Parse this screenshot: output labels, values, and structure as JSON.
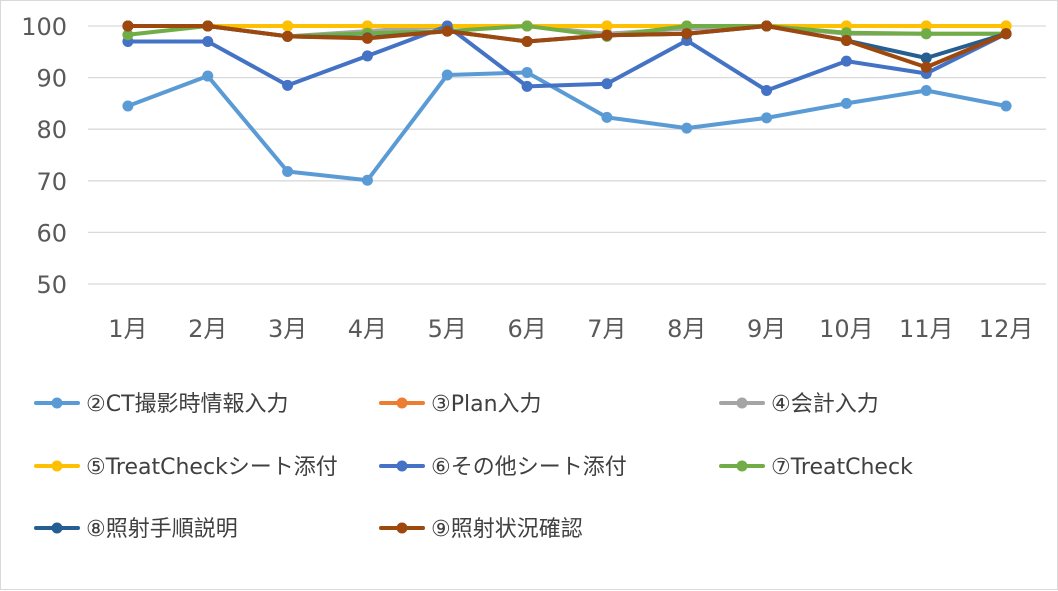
{
  "chart_data": {
    "type": "line",
    "title": "",
    "xlabel": "",
    "ylabel": "",
    "ylim": [
      50,
      100
    ],
    "yticks": [
      50,
      60,
      70,
      80,
      90,
      100
    ],
    "grid": true,
    "legend_position": "bottom",
    "categories": [
      "1月",
      "2月",
      "3月",
      "4月",
      "5月",
      "6月",
      "7月",
      "8月",
      "9月",
      "10月",
      "11月",
      "12月"
    ],
    "series": [
      {
        "name": "②CT撮影時情報入力",
        "color": "#5b9bd5",
        "values": [
          84.5,
          90.3,
          71.8,
          70.1,
          90.5,
          91.0,
          82.3,
          80.2,
          82.2,
          85.0,
          87.5,
          84.5
        ]
      },
      {
        "name": "③Plan入力",
        "color": "#ed7d31",
        "values": [
          100,
          100,
          100,
          100,
          100,
          100,
          100,
          100,
          100,
          100,
          100,
          100
        ]
      },
      {
        "name": "④会計入力",
        "color": "#a5a5a5",
        "values": [
          100,
          100,
          98.0,
          99.0,
          100,
          100,
          98.5,
          99.5,
          100,
          98.5,
          98.5,
          98.5
        ]
      },
      {
        "name": "⑤TreatCheckシート添付",
        "color": "#ffc000",
        "values": [
          100,
          100,
          100,
          100,
          100,
          100,
          100,
          100,
          100,
          100,
          100,
          100
        ]
      },
      {
        "name": "⑥その他シート添付",
        "color": "#4472c4",
        "values": [
          97.0,
          97.0,
          88.5,
          94.2,
          100,
          88.3,
          88.8,
          97.2,
          87.5,
          93.2,
          90.8,
          98.5
        ]
      },
      {
        "name": "⑦TreatCheck",
        "color": "#70ad47",
        "values": [
          98.3,
          100,
          98.0,
          98.6,
          99.0,
          100,
          98.0,
          100,
          100,
          98.7,
          98.5,
          98.5
        ]
      },
      {
        "name": "⑧照射手順説明",
        "color": "#255e91",
        "values": [
          100,
          100,
          98.0,
          97.7,
          99.0,
          97.0,
          98.2,
          98.5,
          100,
          97.2,
          93.8,
          98.5
        ]
      },
      {
        "name": "⑨照射状況確認",
        "color": "#9e480e",
        "values": [
          100,
          100,
          98.0,
          97.6,
          99.0,
          97.0,
          98.2,
          98.5,
          100,
          97.2,
          92.0,
          98.5
        ]
      }
    ]
  }
}
